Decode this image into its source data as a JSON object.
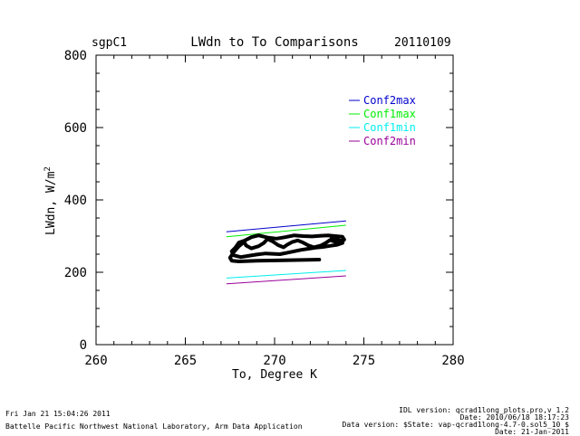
{
  "header": {
    "site": "sgpC1",
    "date": "20110109"
  },
  "footer": {
    "run_time": "Fri Jan 21 15:04:26 2011",
    "organization": "Battelle Pacific Northwest National Laboratory, Arm Data Application",
    "idl_version": "IDL version: qcrad1long_plots.pro,v 1.2",
    "idl_date": "Date: 2010/06/18 18:17:23",
    "data_version": "Data version: $State: vap-qcrad1long-4.7-0.sol5_10 $",
    "data_date": "Date: 21-Jan-2011"
  },
  "chart_data": {
    "type": "line",
    "title": "LWdn to To Comparisons",
    "xlabel": "To, Degree K",
    "ylabel": "LWdn, W/m",
    "ylabel_superscript": "2",
    "xlim": [
      260,
      280
    ],
    "ylim": [
      0,
      800
    ],
    "xticks": [
      260,
      265,
      270,
      275,
      280
    ],
    "yticks": [
      0,
      200,
      400,
      600,
      800
    ],
    "x_minor_step": 1,
    "y_minor_step": 50,
    "grid": false,
    "legend_position": "top-right",
    "series": [
      {
        "name": "Conf2max",
        "color": "#0000cc",
        "x": [
          267.3,
          274.0
        ],
        "y": [
          312,
          342
        ]
      },
      {
        "name": "Conf1max",
        "color": "#00ee00",
        "x": [
          267.3,
          274.0
        ],
        "y": [
          298,
          330
        ]
      },
      {
        "name": "Conf1min",
        "color": "#00eeee",
        "x": [
          267.3,
          274.0
        ],
        "y": [
          184,
          205
        ]
      },
      {
        "name": "Conf2min",
        "color": "#990099",
        "x": [
          267.3,
          274.0
        ],
        "y": [
          168,
          190
        ]
      }
    ],
    "observed": {
      "color": "#000000",
      "x": [
        272.5,
        270.5,
        269.0,
        268.0,
        267.6,
        267.5,
        267.7,
        268.0,
        268.3,
        268.4,
        268.7,
        269.1,
        269.4,
        269.6,
        269.9,
        270.2,
        270.5,
        270.7,
        271.0,
        271.3,
        271.6,
        271.9,
        272.2,
        272.6,
        272.9,
        273.1,
        273.4,
        273.7,
        273.9,
        273.8,
        273.4,
        273.0,
        272.6,
        272.1,
        271.6,
        271.1,
        270.6,
        270.1,
        269.6,
        269.1,
        268.7,
        268.3,
        268.0,
        267.8,
        267.6,
        267.7,
        268.1,
        268.6,
        269.0,
        269.5,
        269.9,
        270.3,
        270.7,
        271.1,
        271.5,
        271.9,
        272.3,
        272.7,
        273.1,
        273.5,
        273.8,
        273.6,
        273.2,
        273.4,
        273.7,
        273.9
      ],
      "y": [
        235,
        233,
        232,
        230,
        232,
        240,
        255,
        272,
        284,
        274,
        266,
        272,
        281,
        292,
        285,
        275,
        269,
        276,
        284,
        288,
        282,
        274,
        269,
        274,
        282,
        289,
        284,
        280,
        290,
        298,
        300,
        302,
        301,
        299,
        300,
        302,
        297,
        293,
        296,
        302,
        297,
        287,
        282,
        268,
        258,
        247,
        242,
        246,
        249,
        252,
        251,
        250,
        254,
        258,
        262,
        265,
        268,
        270,
        273,
        276,
        281,
        289,
        295,
        292,
        287,
        291
      ]
    }
  }
}
